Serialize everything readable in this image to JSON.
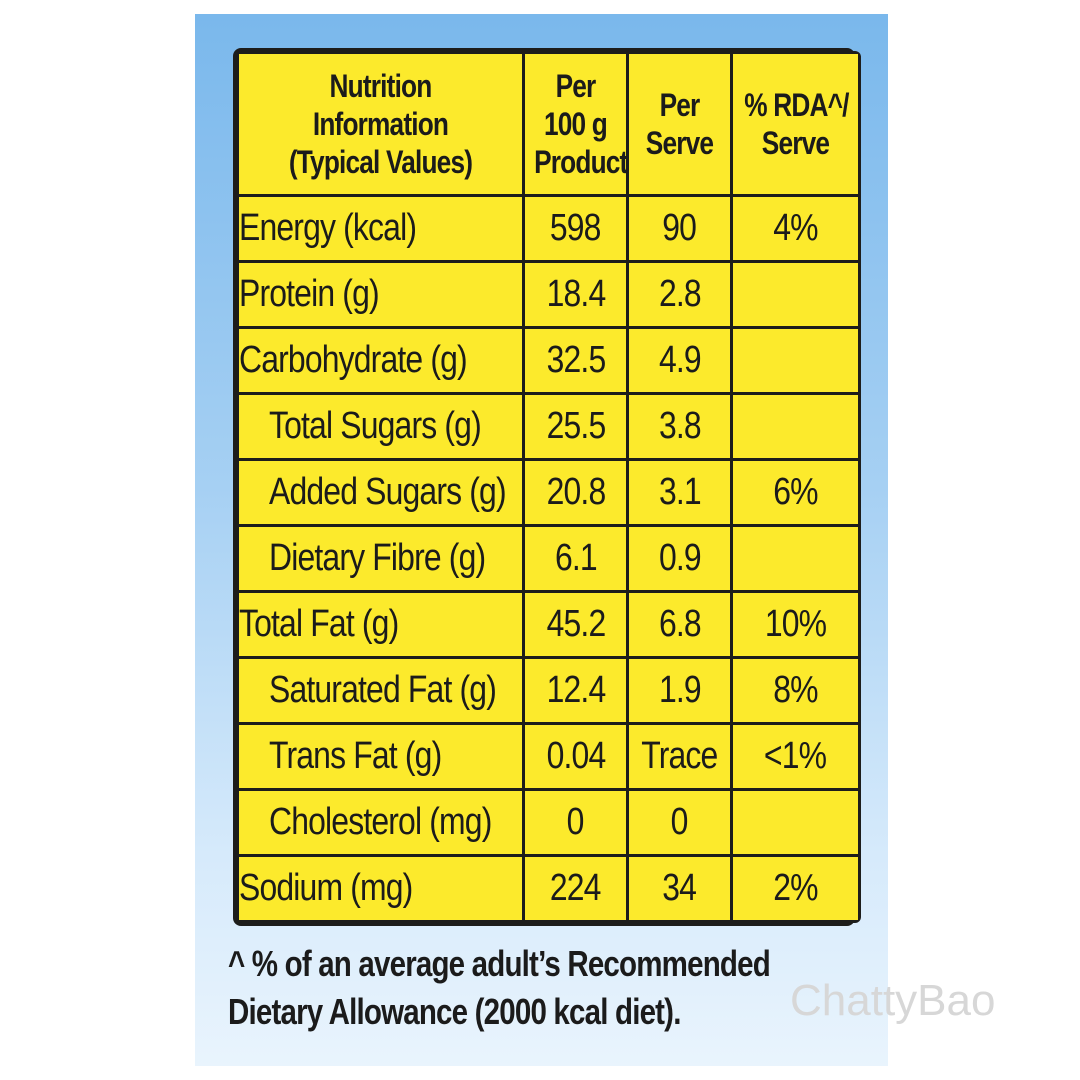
{
  "table": {
    "headers": [
      [
        "Nutrition",
        "Information",
        "(Typical Values)"
      ],
      [
        "Per",
        "100 g",
        "Product"
      ],
      [
        "Per",
        "Serve"
      ],
      [
        "% RDA^/",
        "Serve"
      ]
    ],
    "rows": [
      {
        "label": "Energy (kcal)",
        "indent": false,
        "per100g": "598",
        "perServe": "90",
        "rda": "4%"
      },
      {
        "label": "Protein (g)",
        "indent": false,
        "per100g": "18.4",
        "perServe": "2.8",
        "rda": ""
      },
      {
        "label": "Carbohydrate (g)",
        "indent": false,
        "per100g": "32.5",
        "perServe": "4.9",
        "rda": ""
      },
      {
        "label": "Total Sugars (g)",
        "indent": true,
        "per100g": "25.5",
        "perServe": "3.8",
        "rda": ""
      },
      {
        "label": "Added Sugars (g)",
        "indent": true,
        "per100g": "20.8",
        "perServe": "3.1",
        "rda": "6%"
      },
      {
        "label": "Dietary Fibre (g)",
        "indent": true,
        "per100g": "6.1",
        "perServe": "0.9",
        "rda": ""
      },
      {
        "label": "Total Fat (g)",
        "indent": false,
        "per100g": "45.2",
        "perServe": "6.8",
        "rda": "10%"
      },
      {
        "label": "Saturated Fat (g)",
        "indent": true,
        "per100g": "12.4",
        "perServe": "1.9",
        "rda": "8%"
      },
      {
        "label": "Trans Fat (g)",
        "indent": true,
        "per100g": "0.04",
        "perServe": "Trace",
        "rda": "<1%"
      },
      {
        "label": "Cholesterol (mg)",
        "indent": true,
        "per100g": "0",
        "perServe": "0",
        "rda": ""
      },
      {
        "label": "Sodium (mg)",
        "indent": false,
        "per100g": "224",
        "perServe": "34",
        "rda": "2%"
      }
    ]
  },
  "footnote": {
    "line1": "^ % of an average adult’s Recommended",
    "line2": "Dietary Allowance (2000 kcal diet)."
  },
  "watermark": "ChattyBao",
  "colors": {
    "cell": "#fcea2c",
    "grid": "#1d1d1b",
    "panel_top": "#7ab8ec",
    "panel_bottom": "#e9f4fd",
    "watermark": "#d7d7d7"
  }
}
